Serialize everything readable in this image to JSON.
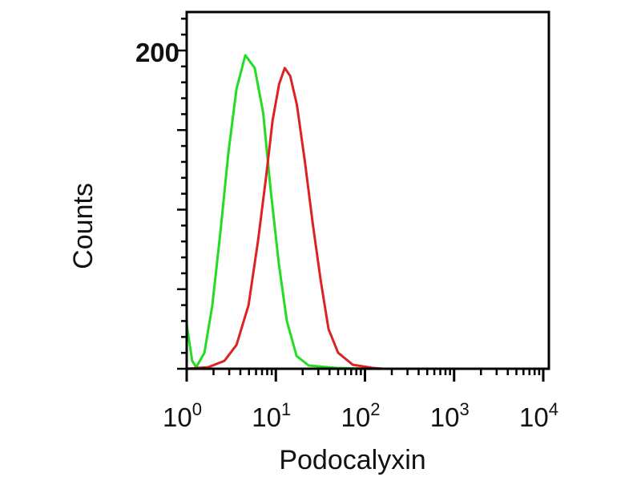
{
  "chart_data": {
    "type": "line",
    "title": "",
    "xlabel": "Podocalyxin",
    "ylabel": "Counts",
    "x_scale": "log",
    "xlim": [
      1,
      10000
    ],
    "ylim": [
      0,
      225
    ],
    "x_ticks": [
      {
        "base": "10",
        "exp": "0"
      },
      {
        "base": "10",
        "exp": "1"
      },
      {
        "base": "10",
        "exp": "2"
      },
      {
        "base": "10",
        "exp": "3"
      },
      {
        "base": "10",
        "exp": "4"
      }
    ],
    "y_tick_labels": [
      "200"
    ],
    "grid": false,
    "legend": "none",
    "series": [
      {
        "color": "#22dd22",
        "x": [
          1.0,
          1.15,
          1.28,
          1.58,
          1.94,
          2.39,
          2.94,
          3.62,
          4.55,
          5.8,
          7.2,
          8.8,
          10.8,
          13.3,
          17.1,
          23.4,
          48,
          120
        ],
        "y": [
          28,
          5,
          1,
          10,
          40,
          86,
          136,
          176,
          197,
          189,
          161,
          111,
          66,
          30,
          8,
          2,
          0.5,
          0
        ]
      },
      {
        "color": "#dd2222",
        "x": [
          1.0,
          1.75,
          2.65,
          3.62,
          4.94,
          6.34,
          7.8,
          9.2,
          10.9,
          12.6,
          14.5,
          17.2,
          21.1,
          26,
          32,
          39,
          50,
          73,
          123,
          160
        ],
        "y": [
          0,
          1,
          5,
          15,
          40,
          81,
          121,
          156,
          179,
          189,
          184,
          166,
          131,
          91,
          55,
          25,
          10,
          2.5,
          0.5,
          0
        ]
      }
    ]
  }
}
